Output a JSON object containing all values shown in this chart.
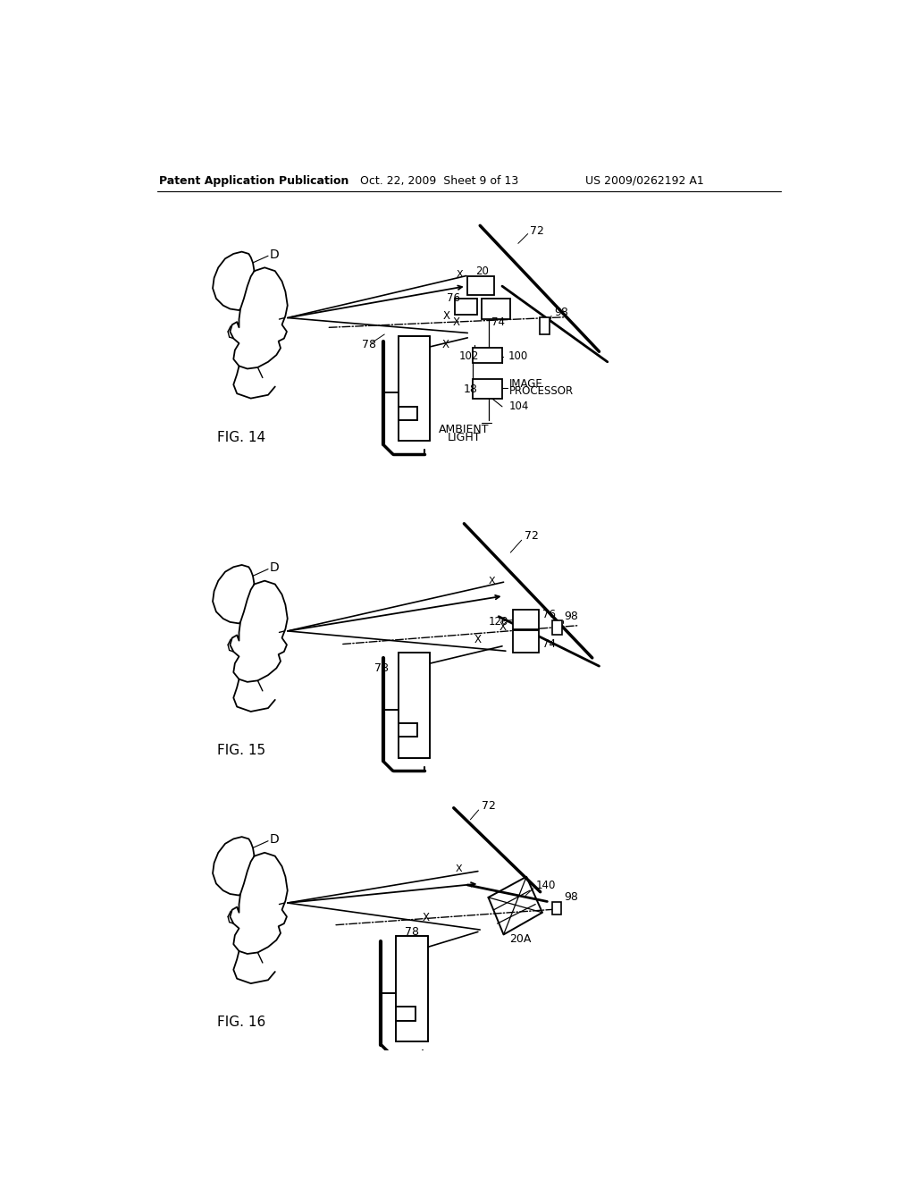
{
  "bg_color": "#ffffff",
  "header_left": "Patent Application Publication",
  "header_mid": "Oct. 22, 2009  Sheet 9 of 13",
  "header_right": "US 2009/0262192 A1",
  "fig14_label": "FIG. 14",
  "fig15_label": "FIG. 15",
  "fig16_label": "FIG. 16",
  "line_color": "#000000"
}
